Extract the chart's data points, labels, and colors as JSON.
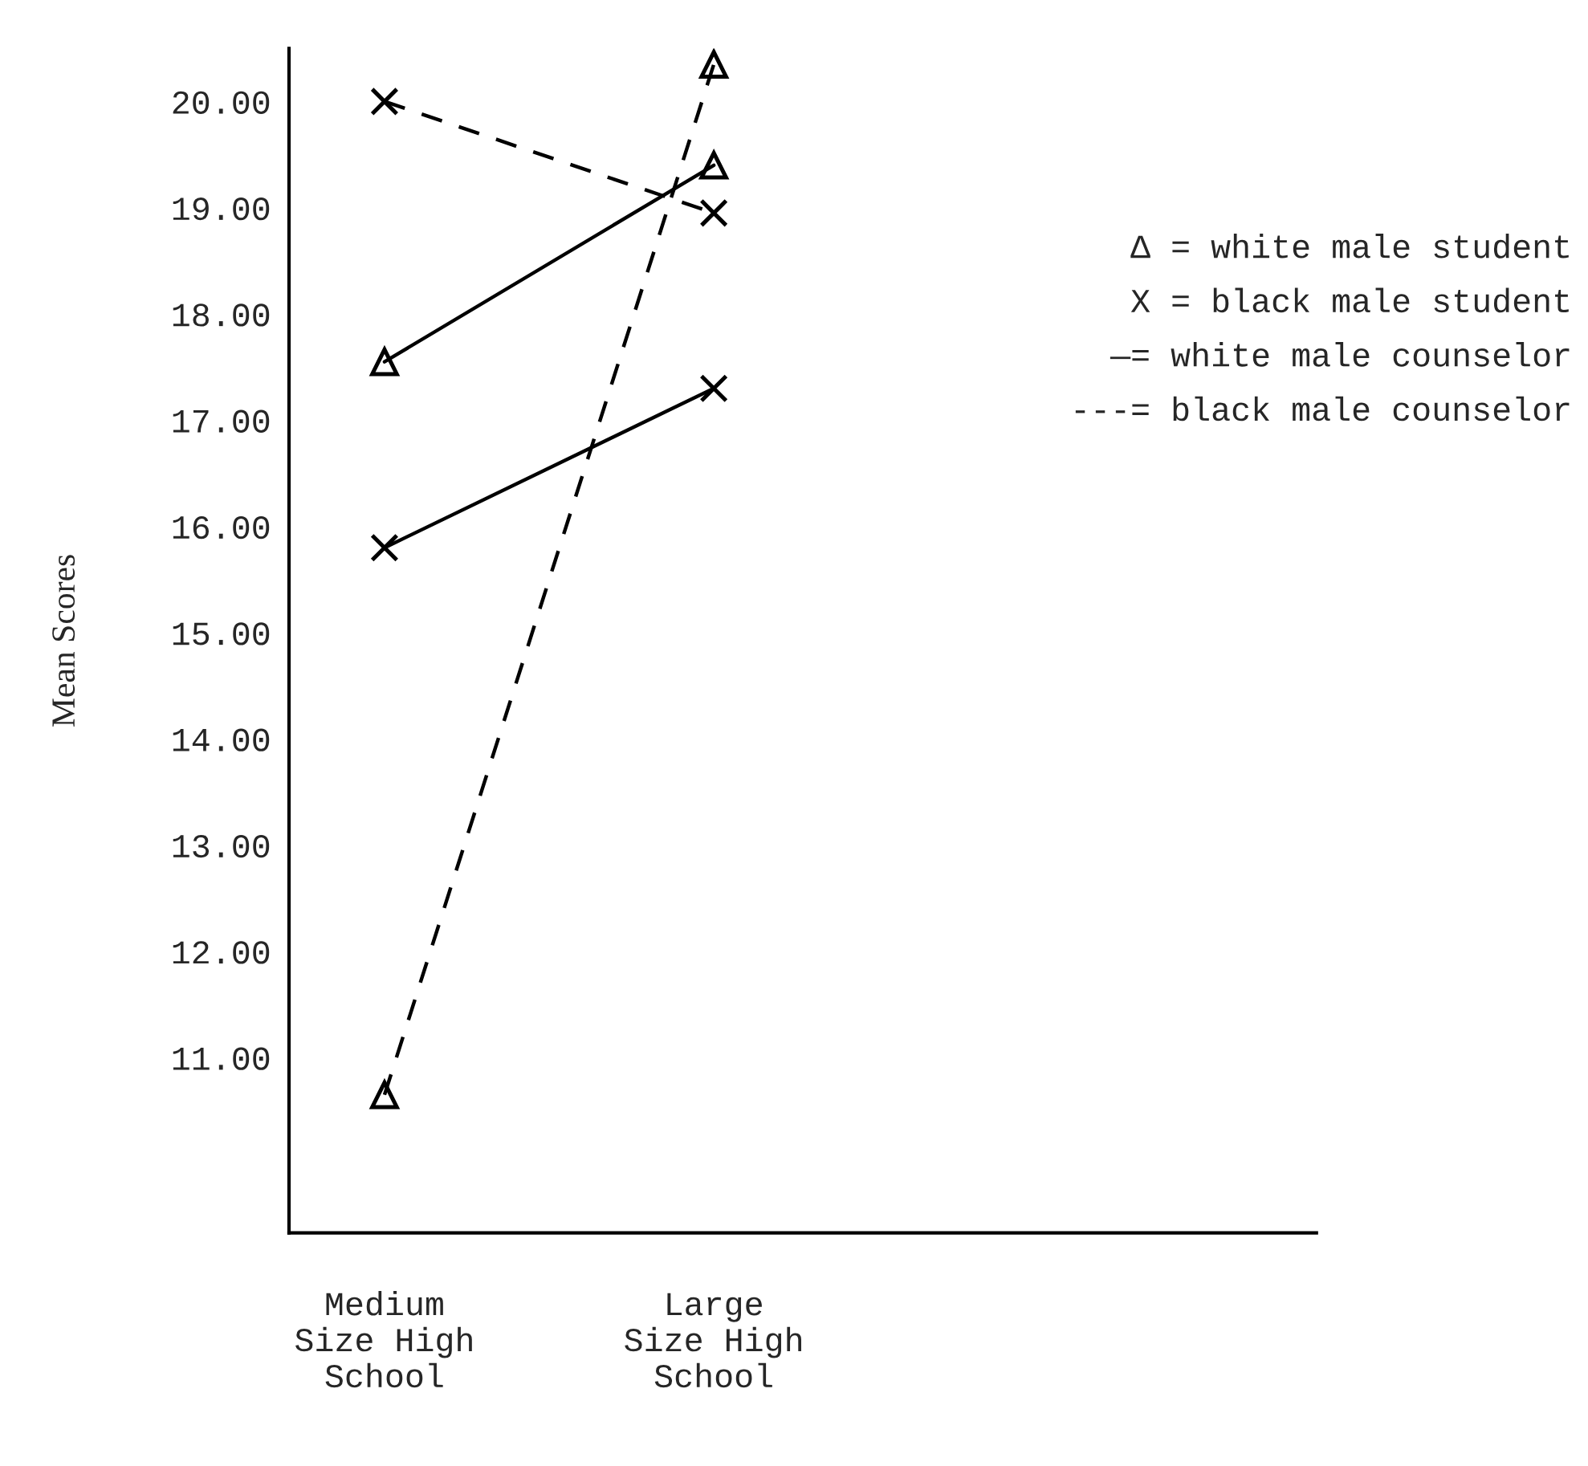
{
  "chart_data": {
    "type": "line",
    "ylabel": "Mean Scores",
    "categories": [
      "Medium\nSize High\nSchool",
      "Large\nSize High\nSchool"
    ],
    "series": [
      {
        "color": "#000000",
        "values": [
          17.55,
          19.4
        ],
        "marker": "triangle",
        "line_style": "solid"
      },
      {
        "color": "#000000",
        "values": [
          15.8,
          17.3
        ],
        "marker": "cross",
        "line_style": "solid"
      },
      {
        "color": "#000000",
        "values": [
          10.65,
          20.35
        ],
        "marker": "triangle",
        "line_style": "dashed"
      },
      {
        "color": "#000000",
        "values": [
          20.0,
          18.95
        ],
        "marker": "cross",
        "line_style": "dashed"
      }
    ],
    "ylim": [
      9.35,
      20.5
    ],
    "yticks": [
      {
        "value": 11,
        "label": "11.00"
      },
      {
        "value": 12,
        "label": "12.00"
      },
      {
        "value": 13,
        "label": "13.00"
      },
      {
        "value": 14,
        "label": "14.00"
      },
      {
        "value": 15,
        "label": "15.00"
      },
      {
        "value": 16,
        "label": "16.00"
      },
      {
        "value": 17,
        "label": "17.00"
      },
      {
        "value": 18,
        "label": "18.00"
      },
      {
        "value": 19,
        "label": "19.00"
      },
      {
        "value": 20,
        "label": "20.00"
      }
    ],
    "annotations": [
      "Δ = white male student",
      "X = black male student",
      "—= white male counselor",
      "---= black male counselor"
    ],
    "grid": false,
    "legend": false
  }
}
